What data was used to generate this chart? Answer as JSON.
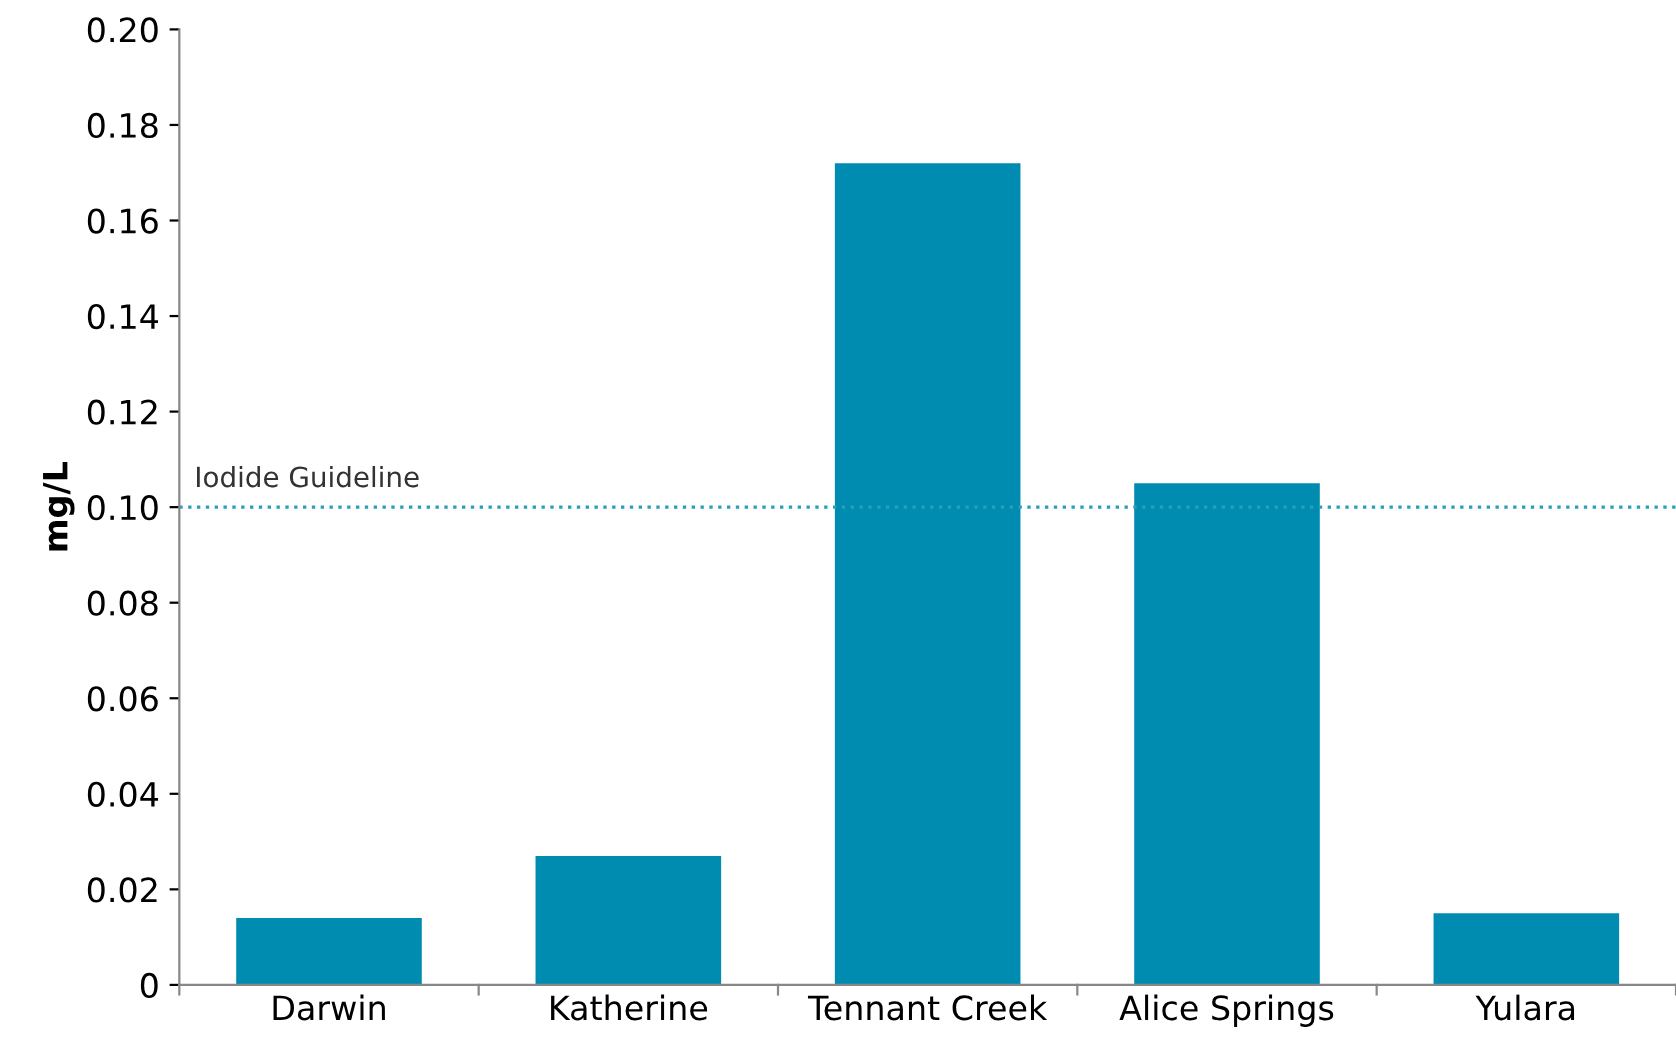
{
  "chart_data": {
    "type": "bar",
    "ylabel": "mg/L",
    "categories": [
      "Darwin",
      "Katherine",
      "Tennant Creek",
      "Alice Springs",
      "Yulara"
    ],
    "values": [
      0.014,
      0.027,
      0.172,
      0.105,
      0.015
    ],
    "color": "#008bb0",
    "ylim": [
      0,
      0.2
    ],
    "yticks": [
      {
        "value": 0,
        "label": "0"
      },
      {
        "value": 0.02,
        "label": "0.02"
      },
      {
        "value": 0.04,
        "label": "0.04"
      },
      {
        "value": 0.06,
        "label": "0.06"
      },
      {
        "value": 0.08,
        "label": "0.08"
      },
      {
        "value": 0.1,
        "label": "0.10"
      },
      {
        "value": 0.12,
        "label": "0.12"
      },
      {
        "value": 0.14,
        "label": "0.14"
      },
      {
        "value": 0.16,
        "label": "0.16"
      },
      {
        "value": 0.18,
        "label": "0.18"
      },
      {
        "value": 0.2,
        "label": "0.20"
      }
    ],
    "ref_lines": [
      {
        "axis": "y",
        "value": 0.1,
        "label": "Iodide Guideline",
        "color": "#2a9fb8",
        "line_style": "dotted"
      }
    ],
    "grid": false
  }
}
